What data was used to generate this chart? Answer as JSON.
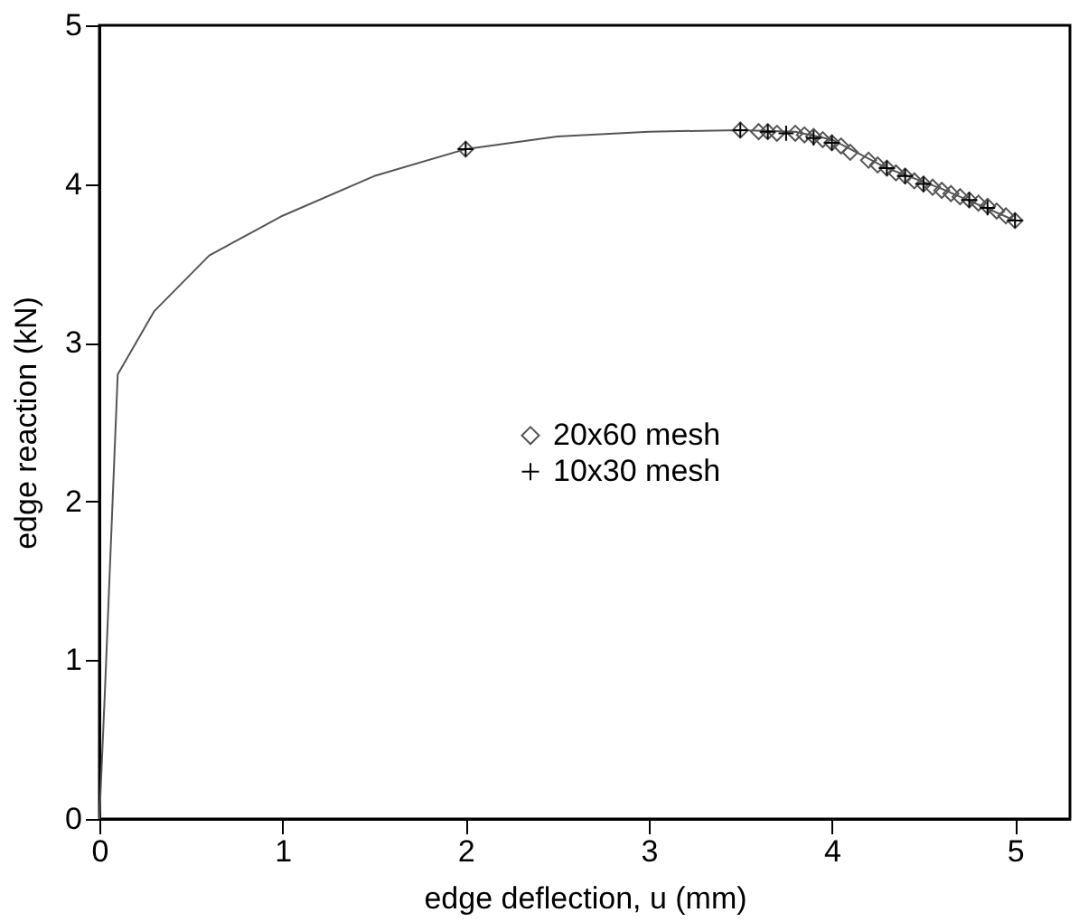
{
  "chart_data": {
    "type": "line",
    "xlabel": "edge deflection, u (mm)",
    "ylabel": "edge reaction (kN)",
    "xlim": [
      0,
      5.3
    ],
    "ylim": [
      0,
      5
    ],
    "xticks": [
      0,
      1,
      2,
      3,
      4,
      5
    ],
    "yticks": [
      0,
      1,
      2,
      3,
      4,
      5
    ],
    "grid": false,
    "legend": "right",
    "series": [
      {
        "color": "#555555",
        "marker": "none",
        "x": [
          0,
          0.03,
          0.1,
          0.3,
          0.6,
          1.0,
          1.5,
          2.0,
          2.5,
          3.0,
          3.5,
          3.8,
          4.0,
          4.1,
          4.3,
          4.6,
          5.0
        ],
        "values": [
          0,
          0.8,
          2.8,
          3.2,
          3.55,
          3.8,
          4.05,
          4.22,
          4.3,
          4.33,
          4.34,
          4.33,
          4.28,
          4.22,
          4.1,
          3.97,
          3.77
        ]
      },
      {
        "type": "scatter",
        "name": "20x60 mesh",
        "color": "#555555",
        "marker": "diamond",
        "x": [
          2.0,
          3.5,
          3.6,
          3.65,
          3.7,
          3.8,
          3.85,
          3.9,
          3.95,
          4.0,
          4.05,
          4.1,
          4.2,
          4.25,
          4.3,
          4.35,
          4.4,
          4.45,
          4.5,
          4.55,
          4.6,
          4.65,
          4.7,
          4.75,
          4.8,
          4.85,
          4.9,
          4.95,
          5.0
        ],
        "values": [
          4.22,
          4.34,
          4.33,
          4.33,
          4.32,
          4.32,
          4.31,
          4.3,
          4.28,
          4.26,
          4.24,
          4.2,
          4.15,
          4.12,
          4.1,
          4.07,
          4.05,
          4.02,
          4.0,
          3.98,
          3.96,
          3.94,
          3.92,
          3.9,
          3.88,
          3.86,
          3.83,
          3.8,
          3.77
        ]
      },
      {
        "type": "scatter",
        "name": "10x30 mesh",
        "color": "#000000",
        "marker": "cross",
        "x": [
          2.0,
          3.5,
          3.65,
          3.75,
          3.9,
          4.0,
          4.3,
          4.4,
          4.5,
          4.75,
          4.85,
          5.0
        ],
        "values": [
          4.22,
          4.34,
          4.33,
          4.32,
          4.29,
          4.26,
          4.1,
          4.05,
          4.0,
          3.9,
          3.85,
          3.77
        ]
      }
    ]
  }
}
